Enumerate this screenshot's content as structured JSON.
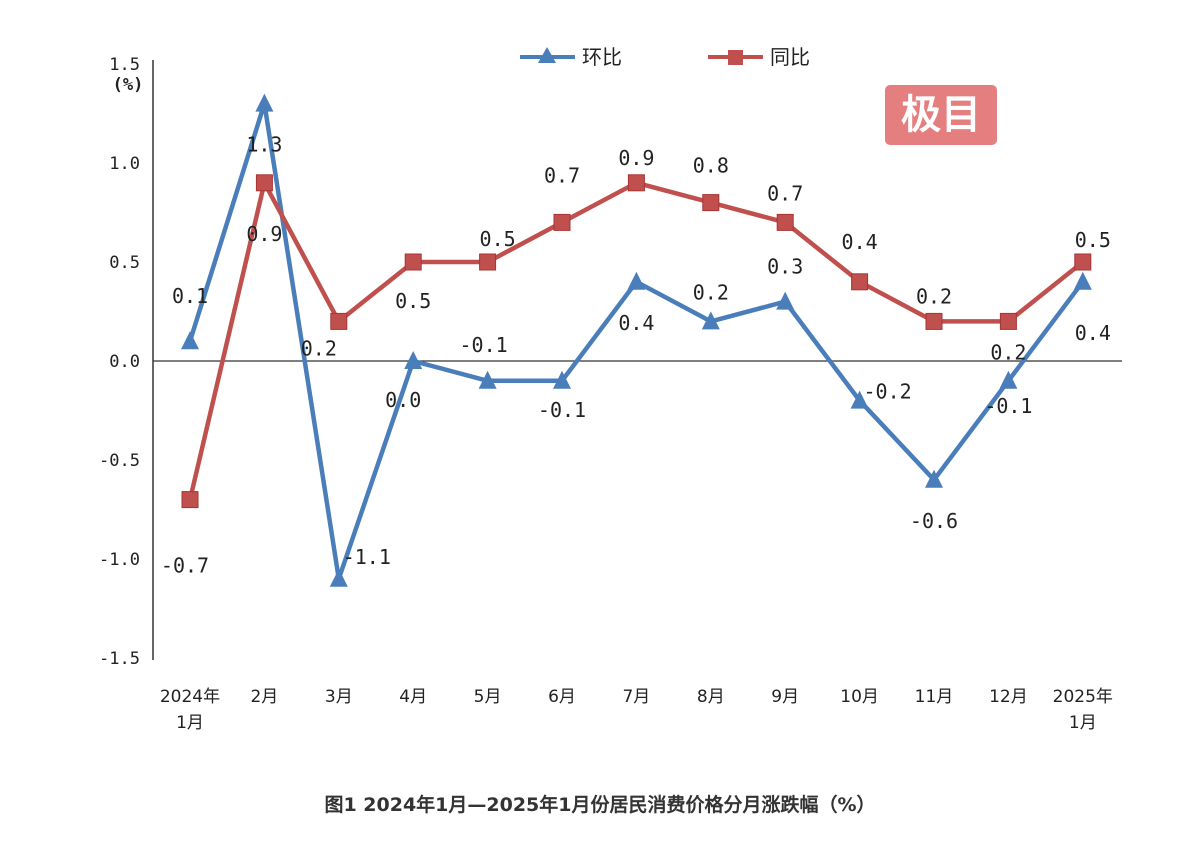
{
  "chart_data": {
    "type": "line",
    "categories": [
      "2024年\n1月",
      "2月",
      "3月",
      "4月",
      "5月",
      "6月",
      "7月",
      "8月",
      "9月",
      "10月",
      "11月",
      "12月",
      "2025年\n1月"
    ],
    "series": [
      {
        "name": "环比",
        "color": "#4a7ebb",
        "marker": "triangle",
        "values": [
          0.1,
          1.3,
          -1.1,
          0.0,
          -0.1,
          -0.1,
          0.4,
          0.2,
          0.3,
          -0.2,
          -0.6,
          -0.1,
          0.4
        ],
        "labels": [
          "0.1",
          "1.3",
          "-1.1",
          "0.0",
          "-0.1",
          "-0.1",
          "0.4",
          "0.2",
          "0.3",
          "-0.2",
          "-0.6",
          "-0.1",
          "0.4"
        ]
      },
      {
        "name": "同比",
        "color": "#c0504d",
        "marker": "square",
        "values": [
          -0.7,
          0.9,
          0.2,
          0.5,
          0.5,
          0.7,
          0.9,
          0.8,
          0.7,
          0.4,
          0.2,
          0.2,
          0.5
        ],
        "labels": [
          "-0.7",
          "0.9",
          "0.2",
          "0.5",
          "0.5",
          "0.7",
          "0.9",
          "0.8",
          "0.7",
          "0.4",
          "0.2",
          "0.2",
          "0.5"
        ]
      }
    ],
    "ylim": [
      -1.5,
      1.5
    ],
    "yticks": [
      "1.5",
      "1.0",
      "0.5",
      "0.0",
      "-0.5",
      "-1.0",
      "-1.5"
    ],
    "yunit": "(%)",
    "legend": "top",
    "grid": false,
    "title": "图1  2024年1月—2025年1月份居民消费价格分月涨跌幅（%）"
  },
  "watermark": "极目"
}
